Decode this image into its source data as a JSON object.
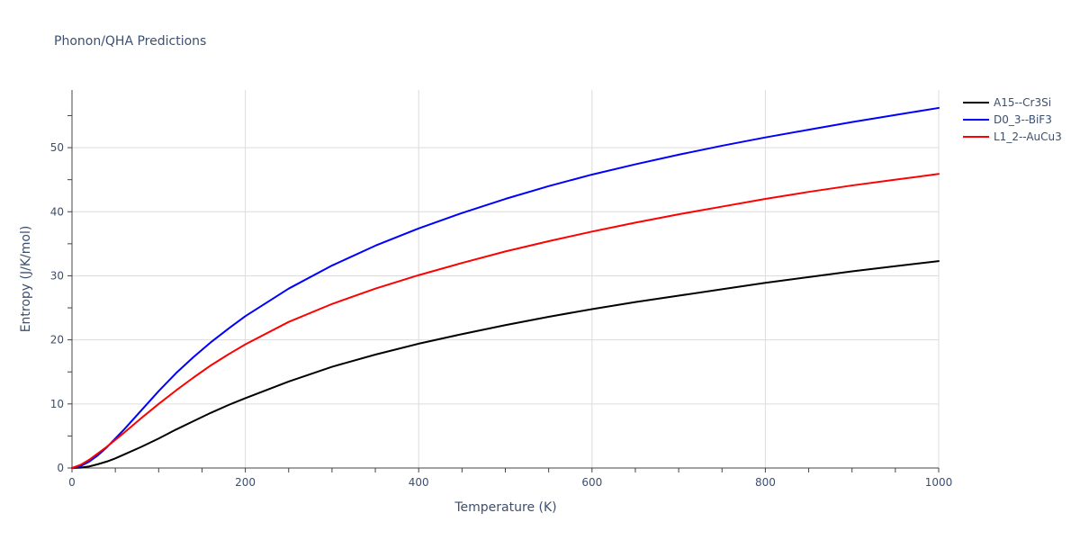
{
  "chart_data": {
    "type": "line",
    "title": "Phonon/QHA Predictions",
    "xlabel": "Temperature (K)",
    "ylabel": "Entropy (J/K/mol)",
    "xlim": [
      0,
      1000
    ],
    "ylim": [
      0,
      59
    ],
    "x_ticks": [
      0,
      200,
      400,
      600,
      800,
      1000
    ],
    "y_ticks": [
      0,
      10,
      20,
      30,
      40,
      50
    ],
    "grid": true,
    "legend_position": "top-right",
    "x": [
      0,
      10,
      20,
      30,
      40,
      50,
      60,
      80,
      100,
      120,
      140,
      160,
      180,
      200,
      250,
      300,
      350,
      400,
      450,
      500,
      550,
      600,
      650,
      700,
      750,
      800,
      850,
      900,
      950,
      1000
    ],
    "series": [
      {
        "name": "A15--Cr3Si",
        "color": "#000000",
        "values": [
          0,
          0.05,
          0.25,
          0.6,
          1.0,
          1.5,
          2.1,
          3.3,
          4.6,
          6.0,
          7.3,
          8.6,
          9.8,
          10.9,
          13.5,
          15.8,
          17.7,
          19.4,
          20.9,
          22.3,
          23.6,
          24.8,
          25.9,
          26.9,
          27.9,
          28.9,
          29.8,
          30.7,
          31.5,
          32.3
        ]
      },
      {
        "name": "D0_3--BiF3",
        "color": "#0000ff",
        "values": [
          0,
          0.3,
          1.0,
          2.0,
          3.2,
          4.6,
          6.0,
          9.0,
          12.0,
          14.8,
          17.3,
          19.6,
          21.7,
          23.7,
          28.0,
          31.6,
          34.7,
          37.4,
          39.8,
          42.0,
          44.0,
          45.8,
          47.4,
          48.9,
          50.3,
          51.6,
          52.8,
          54.0,
          55.1,
          56.2
        ]
      },
      {
        "name": "L1_2--AuCu3",
        "color": "#ff0000",
        "values": [
          0,
          0.5,
          1.3,
          2.3,
          3.3,
          4.4,
          5.5,
          7.8,
          10.0,
          12.1,
          14.1,
          16.0,
          17.7,
          19.3,
          22.8,
          25.6,
          28.0,
          30.1,
          32.0,
          33.8,
          35.4,
          36.9,
          38.3,
          39.6,
          40.8,
          42.0,
          43.1,
          44.1,
          45.0,
          45.9
        ]
      }
    ]
  }
}
